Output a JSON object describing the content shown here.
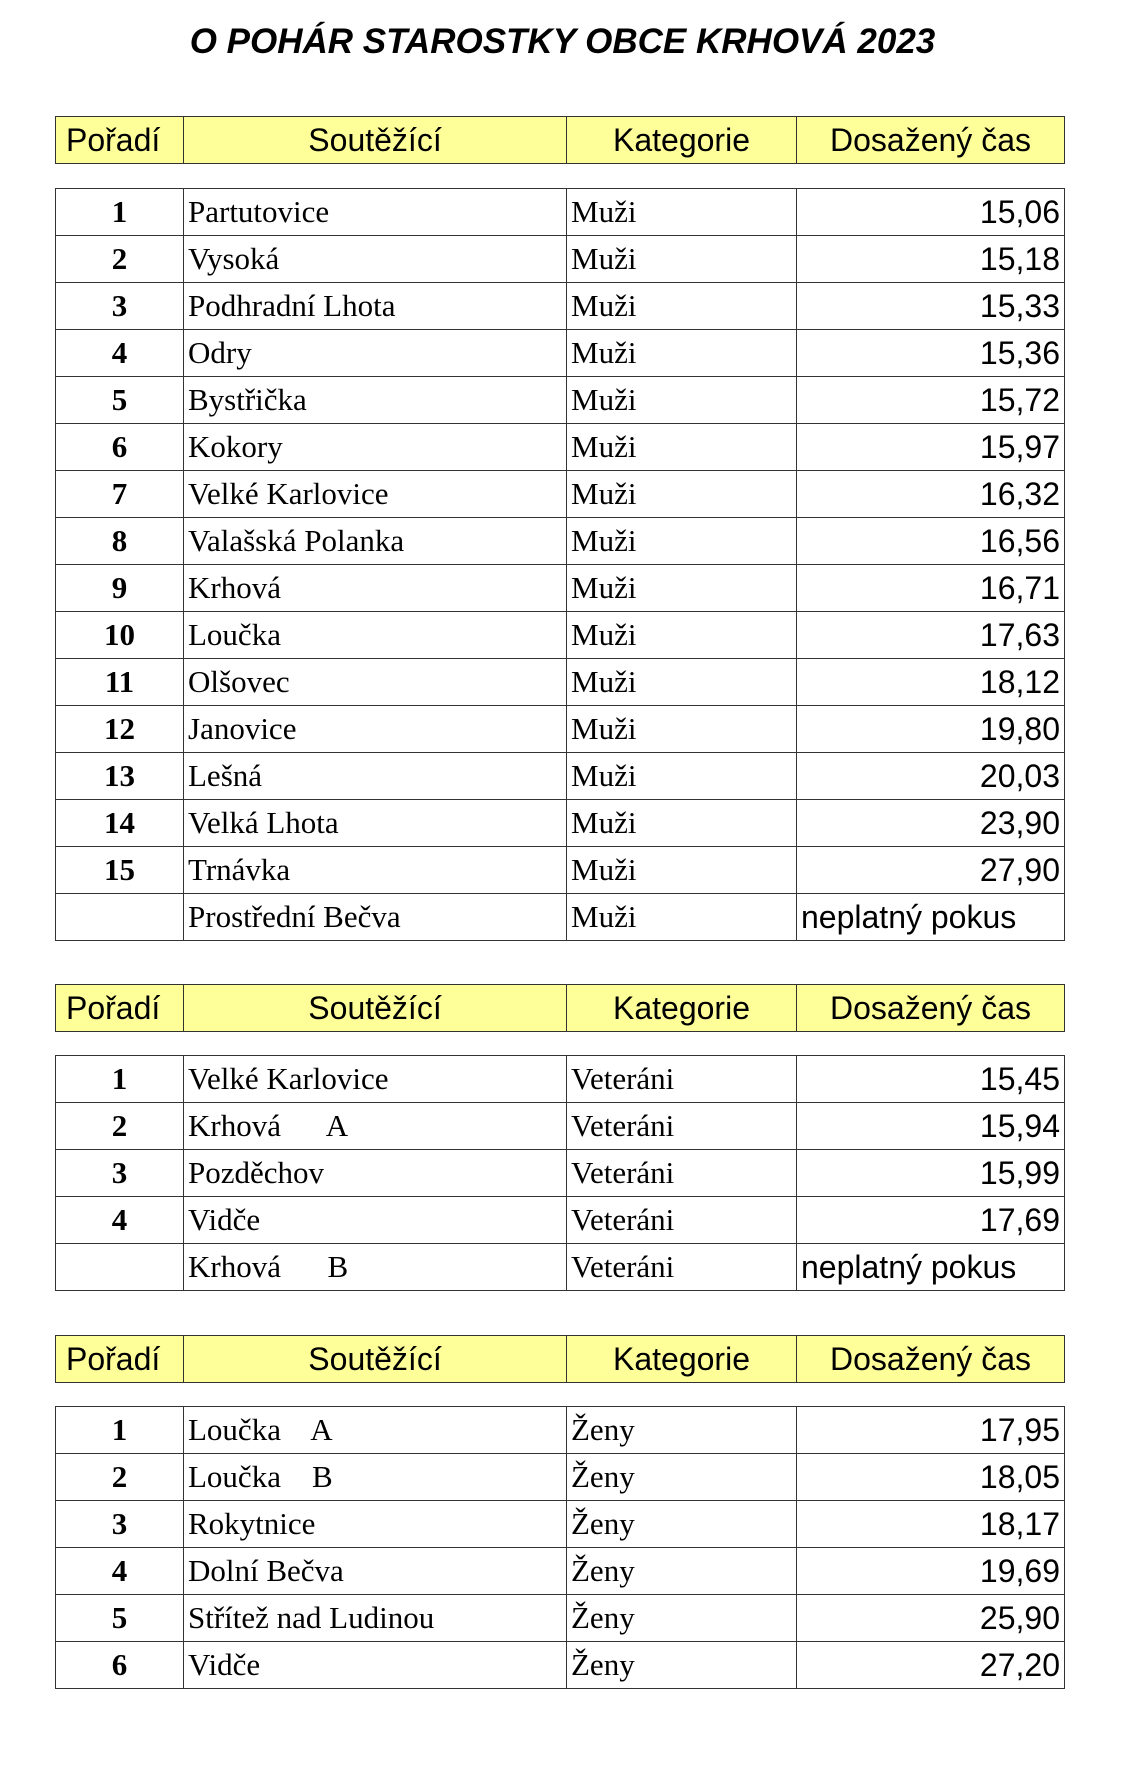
{
  "title": "O POHÁR STAROSTKY OBCE KRHOVÁ 2023",
  "headers": [
    "Pořadí",
    "Soutěžící",
    "Kategorie",
    "Dosažený čas"
  ],
  "sections": [
    {
      "rows": [
        [
          "1",
          "Partutovice",
          "Muži",
          "15,06"
        ],
        [
          "2",
          "Vysoká",
          "Muži",
          "15,18"
        ],
        [
          "3",
          "Podhradní Lhota",
          "Muži",
          "15,33"
        ],
        [
          "4",
          "Odry",
          "Muži",
          "15,36"
        ],
        [
          "5",
          "Bystřička",
          "Muži",
          "15,72"
        ],
        [
          "6",
          "Kokory",
          "Muži",
          "15,97"
        ],
        [
          "7",
          "Velké Karlovice",
          "Muži",
          "16,32"
        ],
        [
          "8",
          "Valašská Polanka",
          "Muži",
          "16,56"
        ],
        [
          "9",
          "Krhová",
          "Muži",
          "16,71"
        ],
        [
          "10",
          "Loučka",
          "Muži",
          "17,63"
        ],
        [
          "11",
          "Olšovec",
          "Muži",
          "18,12"
        ],
        [
          "12",
          "Janovice",
          "Muži",
          "19,80"
        ],
        [
          "13",
          "Lešná",
          "Muži",
          "20,03"
        ],
        [
          "14",
          "Velká Lhota",
          "Muži",
          "23,90"
        ],
        [
          "15",
          "Trnávka",
          "Muži",
          "27,90"
        ],
        [
          "",
          "Prostřední Bečva",
          "Muži",
          "neplatný pokus"
        ]
      ]
    },
    {
      "rows": [
        [
          "1",
          "Velké Karlovice",
          "Veteráni",
          "15,45"
        ],
        [
          "2",
          "Krhová      A",
          "Veteráni",
          "15,94"
        ],
        [
          "3",
          "Pozděchov",
          "Veteráni",
          "15,99"
        ],
        [
          "4",
          "Vidče",
          "Veteráni",
          "17,69"
        ],
        [
          "",
          "Krhová      B",
          "Veteráni",
          "neplatný pokus"
        ]
      ]
    },
    {
      "rows": [
        [
          "1",
          "Loučka    A",
          "Ženy",
          "17,95"
        ],
        [
          "2",
          "Loučka    B",
          "Ženy",
          "18,05"
        ],
        [
          "3",
          "Rokytnice",
          "Ženy",
          "18,17"
        ],
        [
          "4",
          "Dolní Bečva",
          "Ženy",
          "19,69"
        ],
        [
          "5",
          "Střítež nad Ludinou",
          "Ženy",
          "25,90"
        ],
        [
          "6",
          "Vidče",
          "Ženy",
          "27,20"
        ]
      ]
    }
  ],
  "colors": {
    "header_bg": "#ffff99"
  }
}
